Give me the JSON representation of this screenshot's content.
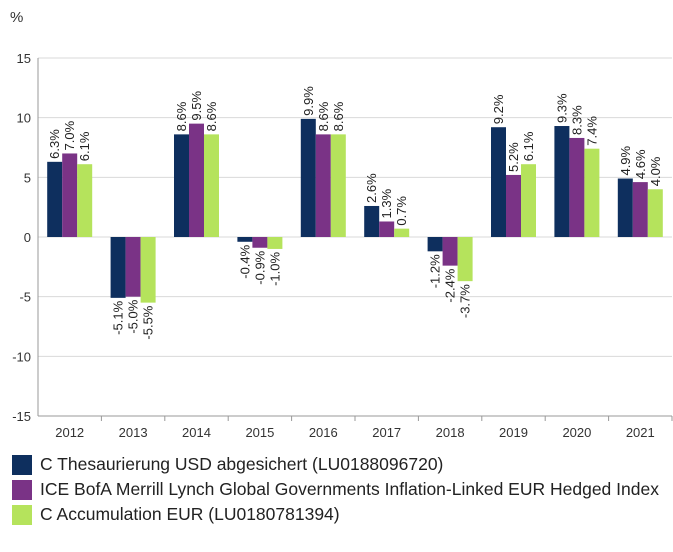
{
  "chart_data": {
    "type": "bar",
    "unit_label": "%",
    "categories": [
      "2012",
      "2013",
      "2014",
      "2015",
      "2016",
      "2017",
      "2018",
      "2019",
      "2020",
      "2021"
    ],
    "ylim": [
      -15,
      15
    ],
    "yticks": [
      15,
      10,
      5,
      0,
      -5,
      -10,
      -15
    ],
    "grid": "horizontal",
    "legend_position": "bottom",
    "series": [
      {
        "name": "C Thesaurierung USD abgesichert (LU0188096720)",
        "color": "#0e2f5e",
        "values": [
          6.3,
          -5.1,
          8.6,
          -0.4,
          9.9,
          2.6,
          -1.2,
          9.2,
          9.3,
          4.9
        ],
        "labels": [
          "6.3%",
          "-5.1%",
          "8.6%",
          "-0.4%",
          "9.9%",
          "2.6%",
          "-1.2%",
          "9.2%",
          "9.3%",
          "4.9%"
        ]
      },
      {
        "name": "ICE BofA Merrill Lynch Global Governments Inflation-Linked EUR Hedged Index",
        "color": "#7a3386",
        "values": [
          7.0,
          -5.0,
          9.5,
          -0.9,
          8.6,
          1.3,
          -2.4,
          5.2,
          8.3,
          4.6
        ],
        "labels": [
          "7.0%",
          "-5.0%",
          "9.5%",
          "-0.9%",
          "8.6%",
          "1.3%",
          "-2.4%",
          "5.2%",
          "8.3%",
          "4.6%"
        ]
      },
      {
        "name": "C Accumulation EUR (LU0180781394)",
        "color": "#b5e35c",
        "values": [
          6.1,
          -5.5,
          8.6,
          -1.0,
          8.6,
          0.7,
          -3.7,
          6.1,
          7.4,
          4.0
        ],
        "labels": [
          "6.1%",
          "-5.5%",
          "8.6%",
          "-1.0%",
          "8.6%",
          "0.7%",
          "-3.7%",
          "6.1%",
          "7.4%",
          "4.0%"
        ]
      }
    ]
  }
}
